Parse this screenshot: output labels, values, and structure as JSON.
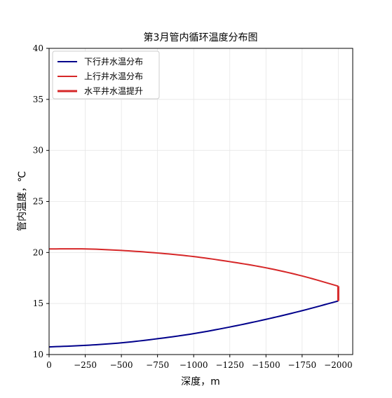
{
  "chart_data": {
    "type": "line",
    "title": "第3月管内循环温度分布图",
    "xlabel": "深度，m",
    "ylabel": "管内温度，℃",
    "xlim": [
      0,
      -2100
    ],
    "ylim": [
      10,
      40
    ],
    "xticks": [
      0,
      -250,
      -500,
      -750,
      -1000,
      -1250,
      -1500,
      -1750,
      -2000
    ],
    "yticks": [
      10,
      15,
      20,
      25,
      30,
      35,
      40
    ],
    "grid": true,
    "legend_position": "top-left",
    "series": [
      {
        "name": "下行井水温分布",
        "color": "#00008b",
        "x": [
          0,
          -250,
          -500,
          -750,
          -1000,
          -1250,
          -1500,
          -1750,
          -2000
        ],
        "y": [
          10.75,
          10.9,
          11.15,
          11.55,
          12.05,
          12.7,
          13.45,
          14.3,
          15.25
        ]
      },
      {
        "name": "上行井水温分布",
        "color": "#d62728",
        "x": [
          0,
          -250,
          -500,
          -750,
          -1000,
          -1250,
          -1500,
          -1750,
          -2000
        ],
        "y": [
          20.35,
          20.35,
          20.2,
          19.95,
          19.6,
          19.1,
          18.5,
          17.7,
          16.7
        ]
      },
      {
        "name": "水平井水温提升",
        "color": "#d62728",
        "x": [
          -2000,
          -2000
        ],
        "y": [
          15.25,
          16.7
        ]
      }
    ]
  }
}
